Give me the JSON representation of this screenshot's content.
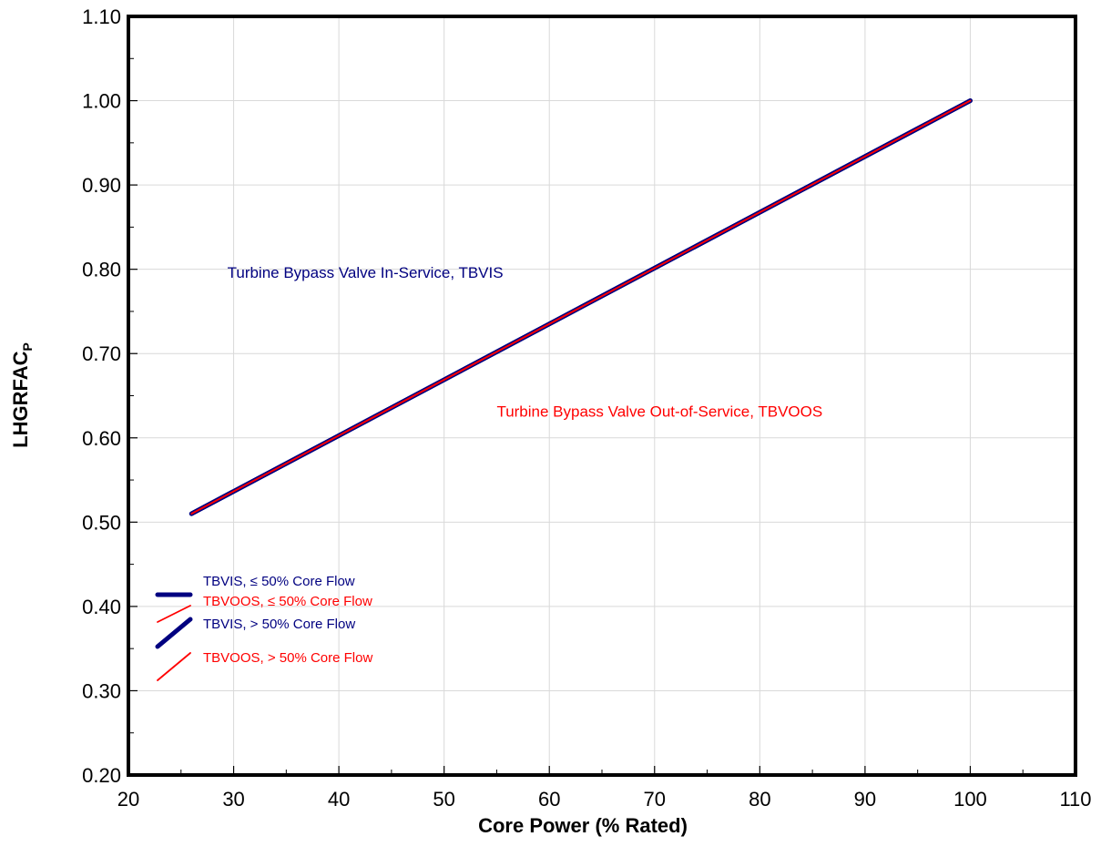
{
  "chart_data": {
    "type": "line",
    "xlabel": "Core Power (% Rated)",
    "ylabel_main": "LHGRFAC",
    "ylabel_sub": "P",
    "xlim": [
      20,
      110
    ],
    "ylim": [
      0.2,
      1.1
    ],
    "x_ticks": [
      20,
      30,
      40,
      50,
      60,
      70,
      80,
      90,
      100,
      110
    ],
    "x_tick_labels": [
      "20",
      "30",
      "40",
      "50",
      "60",
      "70",
      "80",
      "90",
      "100",
      "110"
    ],
    "y_ticks": [
      0.2,
      0.3,
      0.4,
      0.5,
      0.6,
      0.7,
      0.8,
      0.9,
      1.0,
      1.1
    ],
    "y_tick_labels": [
      "0.20",
      "0.30",
      "0.40",
      "0.50",
      "0.60",
      "0.70",
      "0.80",
      "0.90",
      "1.00",
      "1.10"
    ],
    "grid": true,
    "series": [
      {
        "name": "TBVIS, ≤ 50% Core Flow",
        "color": "#000080",
        "style": "thick",
        "x": [
          26,
          100
        ],
        "y": [
          0.51,
          1.0
        ]
      },
      {
        "name": "TBVOOS, ≤ 50% Core Flow",
        "color": "#ff0000",
        "style": "thin",
        "x": [
          26,
          100
        ],
        "y": [
          0.51,
          1.0
        ]
      },
      {
        "name": "TBVIS, > 50% Core Flow",
        "color": "#000080",
        "style": "thick",
        "x": [
          26,
          100
        ],
        "y": [
          0.51,
          1.0
        ]
      },
      {
        "name": "TBVOOS, > 50% Core Flow",
        "color": "#ff0000",
        "style": "thin",
        "x": [
          26,
          100
        ],
        "y": [
          0.51,
          1.0
        ]
      }
    ],
    "annotations": [
      {
        "text": "Turbine  Bypass Valve In-Service,  TBVIS",
        "color": "#000080",
        "x": 29.4,
        "y": 0.79
      },
      {
        "text": "Turbine  Bypass Valve Out-of-Service,  TBVOOS",
        "color": "#ff0000",
        "x": 55.0,
        "y": 0.625
      }
    ],
    "legend": {
      "placement": "bottom-left",
      "entries": [
        {
          "label": "TBVIS,  ≤ 50% Core Flow",
          "color": "#000080",
          "style": "thick",
          "shape": "flat"
        },
        {
          "label": "TBVOOS, ≤ 50% Core Flow",
          "color": "#ff0000",
          "style": "thin",
          "shape": "flat"
        },
        {
          "label": "TBVIS,  > 50% Core Flow",
          "color": "#000080",
          "style": "thick",
          "shape": "diagonal"
        },
        {
          "label": "TBVOOS, > 50% Core Flow",
          "color": "#ff0000",
          "style": "thin",
          "shape": "diagonal"
        }
      ]
    }
  }
}
